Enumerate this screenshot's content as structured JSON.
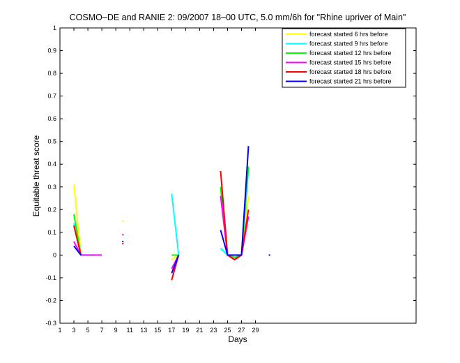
{
  "chart_data": {
    "type": "line",
    "title": "COSMO–DE and RANIE 2: 09/2007 18–00 UTC, 5.0 mm/6h for \"Rhine upriver of Main\"",
    "xlabel": "Days",
    "ylabel": "Equitable threat score",
    "xlim": [
      1,
      52
    ],
    "ylim": [
      -0.3,
      1
    ],
    "xticks": [
      1,
      3,
      5,
      7,
      9,
      11,
      13,
      15,
      17,
      19,
      21,
      23,
      25,
      27,
      29
    ],
    "yticks": [
      -0.3,
      -0.2,
      -0.1,
      0,
      0.1,
      0.2,
      0.3,
      0.4,
      0.5,
      0.6,
      0.7,
      0.8,
      0.9,
      1
    ],
    "grid": false,
    "legend_position": "top-right",
    "series": [
      {
        "name": "forecast started 6 hrs before",
        "color": "#ffff00",
        "segments": [
          [
            [
              3,
              0.31
            ],
            [
              4,
              0.0
            ]
          ],
          [
            [
              10,
              0.15
            ],
            [
              10,
              0.15
            ]
          ],
          [
            [
              17,
              -0.02
            ],
            [
              18,
              0.0
            ]
          ],
          [
            [
              24,
              0.3
            ],
            [
              25,
              0.0
            ],
            [
              26,
              -0.02
            ],
            [
              27,
              0.0
            ],
            [
              28,
              0.26
            ]
          ],
          [
            [
              31,
              0.0
            ],
            [
              31,
              0.0
            ]
          ]
        ]
      },
      {
        "name": "forecast started 9 hrs before",
        "color": "#00ffff",
        "segments": [
          [
            [
              3,
              0.14
            ],
            [
              4,
              0.0
            ],
            [
              5,
              0.0
            ],
            [
              6,
              0.0
            ]
          ],
          [
            [
              17,
              0.27
            ],
            [
              18,
              0.0
            ]
          ],
          [
            [
              24,
              0.03
            ],
            [
              25,
              0.0
            ],
            [
              26,
              -0.01
            ],
            [
              27,
              0.0
            ],
            [
              28,
              0.38
            ]
          ]
        ]
      },
      {
        "name": "forecast started 12 hrs before",
        "color": "#00ff00",
        "segments": [
          [
            [
              3,
              0.18
            ],
            [
              4,
              0.0
            ]
          ],
          [
            [
              17,
              0.0
            ],
            [
              18,
              0.0
            ]
          ],
          [
            [
              24,
              0.3
            ],
            [
              25,
              0.0
            ],
            [
              26,
              -0.01
            ],
            [
              27,
              0.0
            ],
            [
              28,
              0.39
            ]
          ]
        ]
      },
      {
        "name": "forecast started 15 hrs before",
        "color": "#ff00ff",
        "segments": [
          [
            [
              3,
              0.06
            ],
            [
              4,
              0.0
            ],
            [
              5,
              0.0
            ],
            [
              6,
              0.0
            ],
            [
              7,
              0.0
            ]
          ],
          [
            [
              10,
              0.09
            ],
            [
              10,
              0.09
            ]
          ],
          [
            [
              17,
              -0.06
            ],
            [
              18,
              0.0
            ]
          ],
          [
            [
              24,
              0.26
            ],
            [
              25,
              0.0
            ],
            [
              26,
              -0.02
            ],
            [
              27,
              0.0
            ],
            [
              28,
              0.17
            ]
          ]
        ]
      },
      {
        "name": "forecast started 18 hrs before",
        "color": "#ff0000",
        "segments": [
          [
            [
              3,
              0.13
            ],
            [
              4,
              0.0
            ]
          ],
          [
            [
              10,
              0.05
            ],
            [
              10,
              0.05
            ]
          ],
          [
            [
              17,
              -0.11
            ],
            [
              18,
              0.0
            ]
          ],
          [
            [
              24,
              0.37
            ],
            [
              25,
              0.0
            ],
            [
              26,
              -0.02
            ],
            [
              27,
              0.0
            ],
            [
              28,
              0.2
            ]
          ]
        ]
      },
      {
        "name": "forecast started 21 hrs before",
        "color": "#0000ff",
        "segments": [
          [
            [
              3,
              0.04
            ],
            [
              4,
              0.0
            ]
          ],
          [
            [
              10,
              0.06
            ],
            [
              10,
              0.06
            ]
          ],
          [
            [
              17,
              -0.08
            ],
            [
              18,
              0.0
            ]
          ],
          [
            [
              24,
              0.11
            ],
            [
              25,
              0.0
            ],
            [
              26,
              0.0
            ],
            [
              27,
              0.0
            ],
            [
              28,
              0.48
            ]
          ],
          [
            [
              31,
              0.0
            ],
            [
              31,
              0.0
            ]
          ]
        ]
      }
    ]
  }
}
